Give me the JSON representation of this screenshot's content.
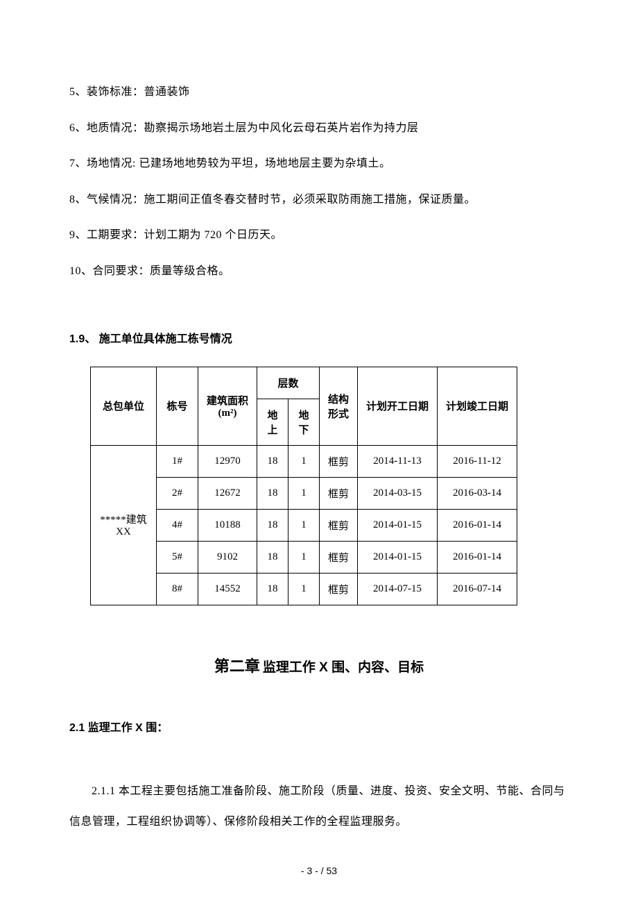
{
  "paragraphs": {
    "item5": "5、装饰标准：普通装饰",
    "item6": "6、地质情况：勘察揭示场地岩土层为中风化云母石英片岩作为持力层",
    "item7": "7、场地情况:  已建场地地势较为平坦，场地地层主要为杂填土。",
    "item8": "8、气候情况：施工期间正值冬春交替时节，必须采取防雨施工措施，保证质量。",
    "item9": "9、工期要求：计划工期为 720 个日历天。",
    "item10": "10、合同要求：质量等级合格。"
  },
  "section_1_9": {
    "number": "1.9、",
    "title": "施工单位具体施工栋号情况"
  },
  "table": {
    "headers": {
      "contractor": "总包单位",
      "building_no": "栋号",
      "area": "建筑面积\n(m²)",
      "area_line1": "建筑面积",
      "area_line2": "(m²)",
      "floors": "层数",
      "above_ground": "地上",
      "below_ground": "地下",
      "structure": "结构\n形式",
      "structure_line1": "结构",
      "structure_line2": "形式",
      "planned_start": "计划开工日期",
      "planned_end": "计划竣工日期"
    },
    "contractor": "*****建筑XX",
    "contractor_line1": "*****建筑",
    "contractor_line2": "XX",
    "rows": [
      {
        "building_no": "1#",
        "area": "12970",
        "above": "18",
        "below": "1",
        "structure": "框剪",
        "start": "2014-11-13",
        "end": "2016-11-12"
      },
      {
        "building_no": "2#",
        "area": "12672",
        "above": "18",
        "below": "1",
        "structure": "框剪",
        "start": "2014-03-15",
        "end": "2016-03-14"
      },
      {
        "building_no": "4#",
        "area": "10188",
        "above": "18",
        "below": "1",
        "structure": "框剪",
        "start": "2014-01-15",
        "end": "2016-01-14"
      },
      {
        "building_no": "5#",
        "area": "9102",
        "above": "18",
        "below": "1",
        "structure": "框剪",
        "start": "2014-01-15",
        "end": "2016-01-14"
      },
      {
        "building_no": "8#",
        "area": "14552",
        "above": "18",
        "below": "1",
        "structure": "框剪",
        "start": "2014-07-15",
        "end": "2016-07-14"
      }
    ]
  },
  "chapter2": {
    "main": "第二章",
    "sub": "监理工作 X 围、内容、目标"
  },
  "section_2_1": {
    "heading": "2.1  监理工作 X 围：",
    "body": "2.1.1 本工程主要包括施工准备阶段、施工阶段（质量、进度、投资、安全文明、节能、合同与信息管理，工程组织协调等）、保修阶段相关工作的全程监理服务。"
  },
  "page_number": "- 3 -   / 53"
}
